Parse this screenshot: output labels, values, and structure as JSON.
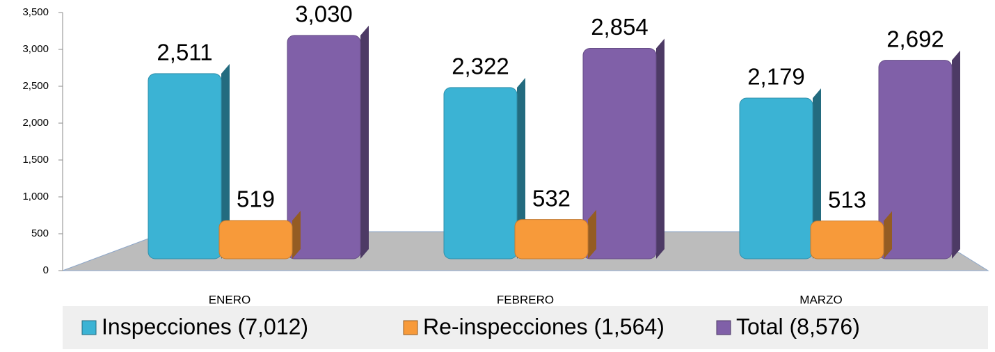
{
  "chart_data": {
    "type": "bar3d",
    "categories": [
      "ENERO",
      "FEBRERO",
      "MARZO"
    ],
    "series": [
      {
        "name": "Inspecciones (7,012)",
        "color": "#3bb3d4",
        "values": [
          2511,
          2322,
          2179
        ],
        "value_labels": [
          "2,511",
          "2,322",
          "2,179"
        ]
      },
      {
        "name": "Re-inspecciones (1,564)",
        "color": "#f79a3a",
        "values": [
          519,
          532,
          513
        ],
        "value_labels": [
          "519",
          "532",
          "513"
        ]
      },
      {
        "name": "Total (8,576)",
        "color": "#8060a8",
        "values": [
          3030,
          2854,
          2692
        ],
        "value_labels": [
          "3,030",
          "2,854",
          "2,692"
        ]
      }
    ],
    "ylim": [
      0,
      3500
    ],
    "yticks": [
      0,
      500,
      {
        "value": 1000,
        "label": "1,000"
      },
      {
        "value": 1500,
        "label": "1,500"
      },
      {
        "value": 2000,
        "label": "2,000"
      },
      {
        "value": 2500,
        "label": "2,500"
      },
      {
        "value": 3000,
        "label": "3,000"
      },
      {
        "value": 3500,
        "label": "3,500"
      }
    ],
    "legend": "bottom"
  }
}
